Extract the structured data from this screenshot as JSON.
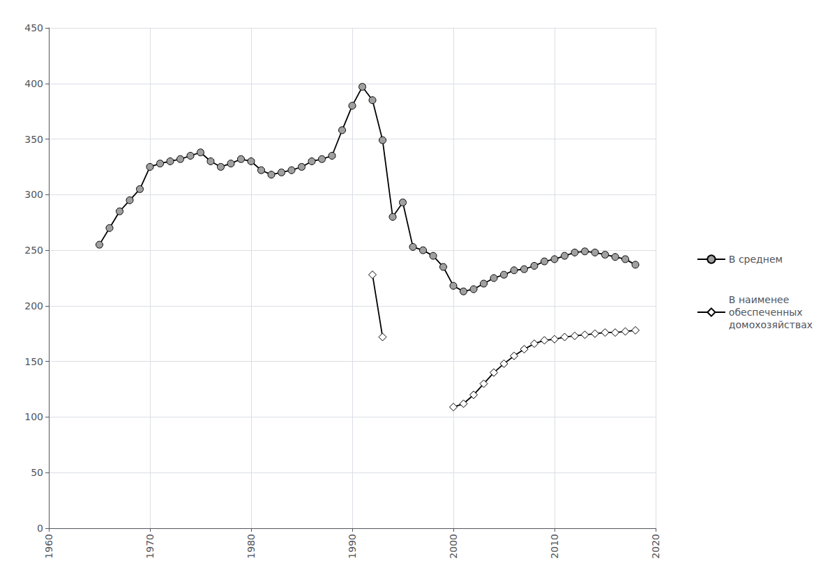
{
  "chart_data": {
    "type": "line",
    "x": [
      1965,
      1966,
      1967,
      1968,
      1969,
      1970,
      1971,
      1972,
      1973,
      1974,
      1975,
      1976,
      1977,
      1978,
      1979,
      1980,
      1981,
      1982,
      1983,
      1984,
      1985,
      1986,
      1987,
      1988,
      1989,
      1990,
      1991,
      1992,
      1993,
      1994,
      1995,
      1996,
      1997,
      1998,
      1999,
      2000,
      2001,
      2002,
      2003,
      2004,
      2005,
      2006,
      2007,
      2008,
      2009,
      2010,
      2011,
      2012,
      2013,
      2014,
      2015,
      2016,
      2017,
      2018
    ],
    "color": "#000000",
    "series": [
      {
        "name": "В среднем",
        "marker": "circle",
        "color": "#a0a0a0",
        "values": [
          255,
          270,
          285,
          295,
          305,
          325,
          328,
          330,
          332,
          335,
          338,
          330,
          325,
          328,
          332,
          330,
          322,
          318,
          320,
          322,
          325,
          330,
          332,
          335,
          358,
          380,
          397,
          385,
          349,
          280,
          293,
          253,
          250,
          245,
          235,
          218,
          213,
          215,
          220,
          225,
          228,
          232,
          233,
          236,
          240,
          242,
          245,
          248,
          249,
          248,
          246,
          244,
          242,
          237
        ]
      },
      {
        "name": "В наименее\nобеспеченных\nдомохозяйствах",
        "marker": "diamond",
        "color": "#ffffff",
        "values": [
          null,
          null,
          null,
          null,
          null,
          null,
          null,
          null,
          null,
          null,
          null,
          null,
          null,
          null,
          null,
          null,
          null,
          null,
          null,
          null,
          null,
          null,
          null,
          null,
          null,
          null,
          null,
          228,
          172,
          null,
          null,
          null,
          null,
          null,
          null,
          109,
          112,
          120,
          130,
          140,
          148,
          155,
          161,
          166,
          169,
          170,
          172,
          173,
          174,
          175,
          176,
          176,
          177,
          178
        ]
      }
    ],
    "xlim": [
      1960,
      2020
    ],
    "xticks": [
      1960,
      1970,
      1980,
      1990,
      2000,
      2010,
      2020
    ],
    "ylim": [
      0,
      450
    ],
    "yticks": [
      0,
      50,
      100,
      150,
      200,
      250,
      300,
      350,
      400,
      450
    ],
    "grid": true,
    "legend": "right"
  }
}
